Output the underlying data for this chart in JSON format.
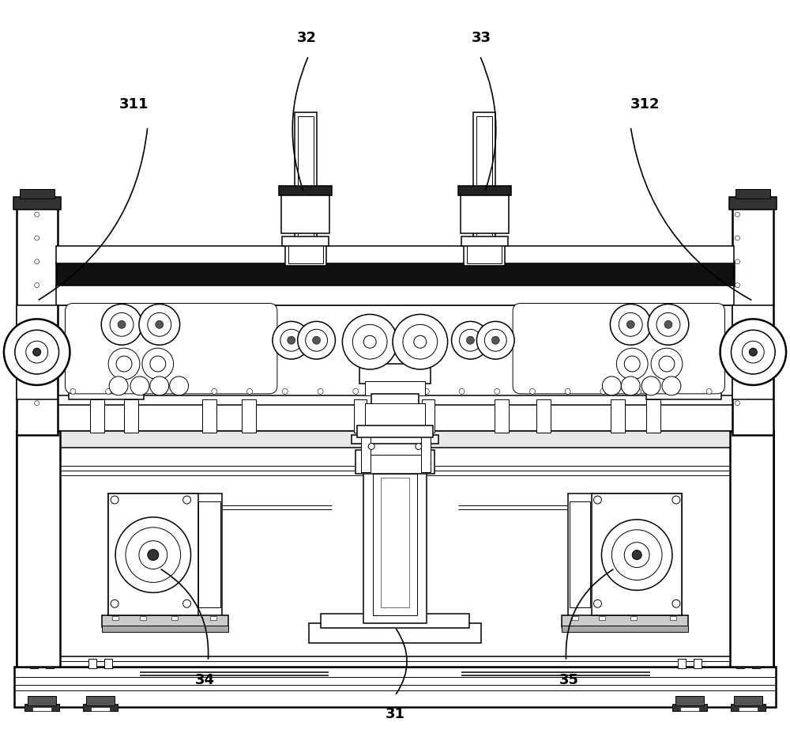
{
  "fig_width": 10.0,
  "fig_height": 9.42,
  "dpi": 100,
  "bg_color": "#ffffff",
  "lc": "#000000",
  "lw_hair": 0.4,
  "lw_thin": 0.7,
  "lw_med": 1.1,
  "lw_thick": 1.8,
  "fc_white": "#ffffff",
  "fc_light": "#f0f0f0",
  "fc_dark": "#333333",
  "label_fontsize": 13
}
